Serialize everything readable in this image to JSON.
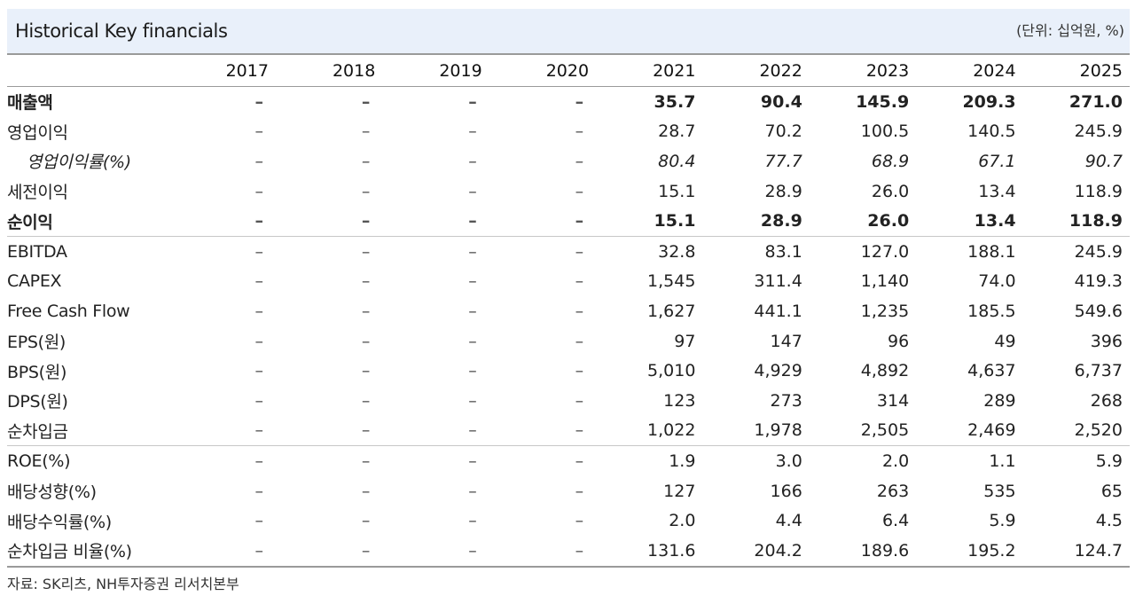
{
  "header": {
    "title": "Historical Key financials",
    "unit": "(단위: 십억원, %)"
  },
  "years": [
    "2017",
    "2018",
    "2019",
    "2020",
    "2021",
    "2022",
    "2023",
    "2024",
    "2025"
  ],
  "rows": [
    {
      "label": "매출액",
      "values": [
        "–",
        "–",
        "–",
        "–",
        "35.7",
        "90.4",
        "145.9",
        "209.3",
        "271.0"
      ]
    },
    {
      "label": "영업이익",
      "values": [
        "–",
        "–",
        "–",
        "–",
        "28.7",
        "70.2",
        "100.5",
        "140.5",
        "245.9"
      ]
    },
    {
      "label": "영업이익률(%)",
      "values": [
        "–",
        "–",
        "–",
        "–",
        "80.4",
        "77.7",
        "68.9",
        "67.1",
        "90.7"
      ]
    },
    {
      "label": "세전이익",
      "values": [
        "–",
        "–",
        "–",
        "–",
        "15.1",
        "28.9",
        "26.0",
        "13.4",
        "118.9"
      ]
    },
    {
      "label": "순이익",
      "values": [
        "–",
        "–",
        "–",
        "–",
        "15.1",
        "28.9",
        "26.0",
        "13.4",
        "118.9"
      ]
    },
    {
      "label": "EBITDA",
      "values": [
        "–",
        "–",
        "–",
        "–",
        "32.8",
        "83.1",
        "127.0",
        "188.1",
        "245.9"
      ]
    },
    {
      "label": "CAPEX",
      "values": [
        "–",
        "–",
        "–",
        "–",
        "1,545",
        "311.4",
        "1,140",
        "74.0",
        "419.3"
      ]
    },
    {
      "label": "Free Cash Flow",
      "values": [
        "–",
        "–",
        "–",
        "–",
        "1,627",
        "441.1",
        "1,235",
        "185.5",
        "549.6"
      ]
    },
    {
      "label": "EPS(원)",
      "values": [
        "–",
        "–",
        "–",
        "–",
        "97",
        "147",
        "96",
        "49",
        "396"
      ]
    },
    {
      "label": "BPS(원)",
      "values": [
        "–",
        "–",
        "–",
        "–",
        "5,010",
        "4,929",
        "4,892",
        "4,637",
        "6,737"
      ]
    },
    {
      "label": "DPS(원)",
      "values": [
        "–",
        "–",
        "–",
        "–",
        "123",
        "273",
        "314",
        "289",
        "268"
      ]
    },
    {
      "label": "순차입금",
      "values": [
        "–",
        "–",
        "–",
        "–",
        "1,022",
        "1,978",
        "2,505",
        "2,469",
        "2,520"
      ]
    },
    {
      "label": "ROE(%)",
      "values": [
        "–",
        "–",
        "–",
        "–",
        "1.9",
        "3.0",
        "2.0",
        "1.1",
        "5.9"
      ]
    },
    {
      "label": "배당성향(%)",
      "values": [
        "–",
        "–",
        "–",
        "–",
        "127",
        "166",
        "263",
        "535",
        "65"
      ]
    },
    {
      "label": "배당수익률(%)",
      "values": [
        "–",
        "–",
        "–",
        "–",
        "2.0",
        "4.4",
        "6.4",
        "5.9",
        "4.5"
      ]
    },
    {
      "label": "순차입금 비율(%)",
      "values": [
        "–",
        "–",
        "–",
        "–",
        "131.6",
        "204.2",
        "189.6",
        "195.2",
        "124.7"
      ]
    }
  ],
  "source": "자료: SK리츠, NH투자증권 리서치본부"
}
